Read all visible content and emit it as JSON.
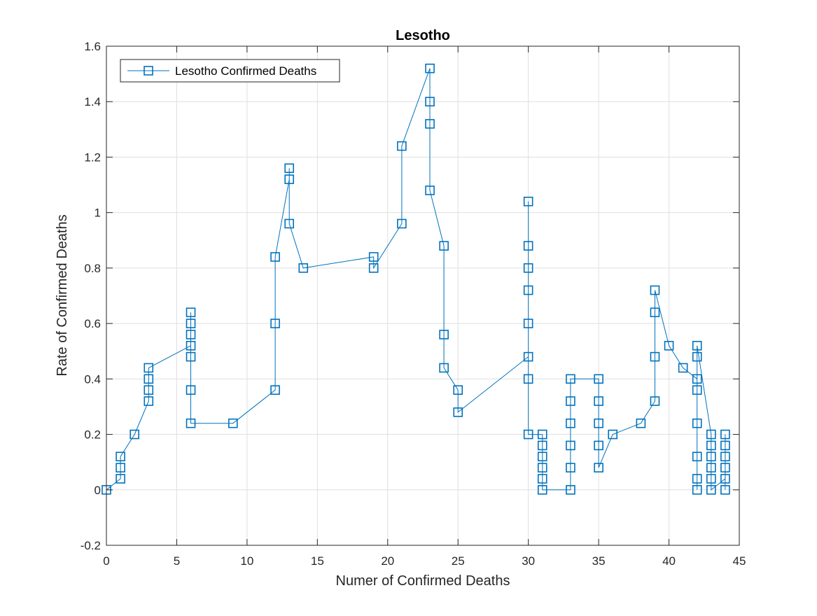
{
  "chart_data": {
    "type": "line",
    "title": "Lesotho",
    "xlabel": "Numer of Confirmed Deaths",
    "ylabel": "Rate of Confirmed Deaths",
    "xlim": [
      0,
      45
    ],
    "ylim": [
      -0.2,
      1.6
    ],
    "xticks": [
      0,
      5,
      10,
      15,
      20,
      25,
      30,
      35,
      40,
      45
    ],
    "yticks": [
      -0.2,
      0,
      0.2,
      0.4,
      0.6,
      0.8,
      1,
      1.2,
      1.4,
      1.6
    ],
    "xtick_labels": [
      "0",
      "5",
      "10",
      "15",
      "20",
      "25",
      "30",
      "35",
      "40",
      "45"
    ],
    "ytick_labels": [
      "-0.2",
      "0",
      "0.2",
      "0.4",
      "0.6",
      "0.8",
      "1",
      "1.2",
      "1.4",
      "1.6"
    ],
    "grid": true,
    "legend_position": "top-left",
    "series": [
      {
        "name": "Lesotho Confirmed Deaths",
        "color": "#0072bd",
        "marker": "square",
        "x": [
          0,
          1,
          1,
          1,
          2,
          3,
          3,
          3,
          3,
          6,
          6,
          6,
          6,
          6,
          6,
          6,
          9,
          12,
          12,
          12,
          13,
          13,
          13,
          14,
          19,
          19,
          21,
          21,
          23,
          23,
          23,
          23,
          24,
          24,
          24,
          25,
          25,
          30,
          30,
          30,
          30,
          30,
          30,
          30,
          30,
          31,
          31,
          31,
          31,
          31,
          31,
          33,
          33,
          33,
          33,
          33,
          33,
          35,
          35,
          35,
          35,
          35,
          36,
          38,
          39,
          39,
          39,
          39,
          40,
          41,
          42,
          42,
          42,
          42,
          42,
          42,
          42,
          42,
          43,
          43,
          43,
          43,
          43,
          43,
          44,
          44,
          44,
          44,
          44,
          44
        ],
        "y": [
          0,
          0.04,
          0.08,
          0.12,
          0.2,
          0.32,
          0.36,
          0.4,
          0.44,
          0.52,
          0.56,
          0.6,
          0.64,
          0.48,
          0.36,
          0.24,
          0.24,
          0.36,
          0.6,
          0.84,
          1.12,
          1.16,
          0.96,
          0.8,
          0.84,
          0.8,
          0.96,
          1.24,
          1.52,
          1.4,
          1.32,
          1.08,
          0.88,
          0.56,
          0.44,
          0.36,
          0.28,
          0.48,
          0.4,
          0.6,
          0.72,
          0.8,
          0.88,
          1.04,
          0.2,
          0.2,
          0.16,
          0.12,
          0.08,
          0.04,
          0,
          0,
          0.08,
          0.16,
          0.24,
          0.32,
          0.4,
          0.4,
          0.32,
          0.24,
          0.16,
          0.08,
          0.2,
          0.24,
          0.32,
          0.48,
          0.64,
          0.72,
          0.52,
          0.44,
          0.4,
          0.36,
          0.24,
          0.12,
          0.04,
          0,
          0.48,
          0.52,
          0.2,
          0.16,
          0.12,
          0.08,
          0.04,
          0,
          0.04,
          0.08,
          0.12,
          0.16,
          0.2,
          0
        ]
      }
    ]
  }
}
